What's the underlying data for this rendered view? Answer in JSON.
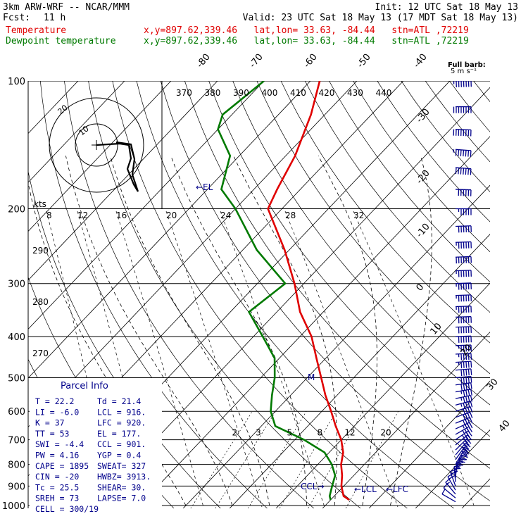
{
  "header": {
    "model": "3km ARW-WRF -- NCAR/MMM",
    "init": "Init: 12 UTC Sat 18 May 13",
    "fcst_label": "Fcst:",
    "fcst_value": "11 h",
    "valid": "Valid: 23 UTC Sat 18 May 13 (17 MDT Sat 18 May 13)"
  },
  "legend": [
    {
      "name": "Temperature",
      "color": "#e00000",
      "info": "x,y=897.62,339.46   lat,lon= 33.63, -84.44   stn=ATL ,72219"
    },
    {
      "name": "Dewpoint temperature",
      "color": "#007a00",
      "info": "x,y=897.62,339.46   lat,lon= 33.63, -84.44   stn=ATL ,72219"
    }
  ],
  "chart_data": {
    "type": "line",
    "chart": "skew-T log-p sounding",
    "pressure_levels": [
      "100",
      "200",
      "300",
      "400",
      "500",
      "600",
      "700",
      "800",
      "900",
      "1000"
    ],
    "temperature_labels": [
      "-80",
      "-70",
      "-60",
      "-50",
      "-40",
      "-30",
      "-20",
      "-10",
      "0",
      "10",
      "20",
      "30",
      "40"
    ],
    "theta_labels": [
      "370",
      "380",
      "390",
      "400",
      "410",
      "420",
      "430",
      "440"
    ],
    "theta_left_labels": [
      "290",
      "280",
      "270"
    ],
    "mixing_ratio_labels": [
      "2",
      "3",
      "5",
      "8",
      "12",
      "20"
    ],
    "wind_speed_labels": [
      "8",
      "12",
      "16",
      "20",
      "24",
      "28",
      "32"
    ],
    "kts_label": "kts",
    "hodo_ring_labels": [
      "20",
      "10"
    ],
    "full_barb_label": "Full barb:",
    "full_barb_value": "5 m s⁻¹",
    "annotations": {
      "el": "←EL",
      "ccl": "CCL→",
      "lcl": "←LCL",
      "lfc": "←LFC",
      "marker": "M"
    },
    "series": [
      {
        "name": "Temperature",
        "color": "#e00000",
        "points": [
          [
            970,
            24
          ],
          [
            950,
            22
          ],
          [
            900,
            19.5
          ],
          [
            850,
            17.5
          ],
          [
            800,
            15
          ],
          [
            750,
            13
          ],
          [
            700,
            10
          ],
          [
            650,
            6
          ],
          [
            600,
            2
          ],
          [
            550,
            -2.5
          ],
          [
            500,
            -7
          ],
          [
            450,
            -12
          ],
          [
            400,
            -17.5
          ],
          [
            350,
            -25
          ],
          [
            300,
            -32
          ],
          [
            250,
            -41
          ],
          [
            200,
            -53
          ],
          [
            180,
            -55
          ],
          [
            150,
            -58
          ],
          [
            120,
            -63
          ],
          [
            100,
            -68
          ]
        ]
      },
      {
        "name": "Dewpoint temperature",
        "color": "#007a00",
        "points": [
          [
            970,
            20
          ],
          [
            950,
            19
          ],
          [
            900,
            17.5
          ],
          [
            850,
            16
          ],
          [
            800,
            13
          ],
          [
            750,
            9
          ],
          [
            700,
            2
          ],
          [
            650,
            -7
          ],
          [
            600,
            -11
          ],
          [
            550,
            -14
          ],
          [
            500,
            -17
          ],
          [
            450,
            -21
          ],
          [
            400,
            -28
          ],
          [
            350,
            -36
          ],
          [
            300,
            -34
          ],
          [
            250,
            -47
          ],
          [
            200,
            -60
          ],
          [
            180,
            -67
          ],
          [
            150,
            -72
          ],
          [
            130,
            -80
          ],
          [
            120,
            -82
          ],
          [
            100,
            -80
          ]
        ]
      }
    ],
    "wind_barbs": [
      {
        "p": 980,
        "dir": 120,
        "spd": 1.5
      },
      {
        "p": 960,
        "dir": 130,
        "spd": 2
      },
      {
        "p": 940,
        "dir": 140,
        "spd": 3
      },
      {
        "p": 920,
        "dir": 150,
        "spd": 3.5
      },
      {
        "p": 900,
        "dir": 160,
        "spd": 4
      },
      {
        "p": 880,
        "dir": 175,
        "spd": 4.5
      },
      {
        "p": 860,
        "dir": 185,
        "spd": 4.5
      },
      {
        "p": 840,
        "dir": 195,
        "spd": 5
      },
      {
        "p": 820,
        "dir": 205,
        "spd": 5
      },
      {
        "p": 800,
        "dir": 210,
        "spd": 5
      },
      {
        "p": 780,
        "dir": 215,
        "spd": 5.5
      },
      {
        "p": 760,
        "dir": 220,
        "spd": 6
      },
      {
        "p": 740,
        "dir": 225,
        "spd": 6
      },
      {
        "p": 720,
        "dir": 230,
        "spd": 6
      },
      {
        "p": 700,
        "dir": 235,
        "spd": 6.5
      },
      {
        "p": 680,
        "dir": 240,
        "spd": 7
      },
      {
        "p": 660,
        "dir": 245,
        "spd": 7
      },
      {
        "p": 640,
        "dir": 248,
        "spd": 7.5
      },
      {
        "p": 620,
        "dir": 250,
        "spd": 8
      },
      {
        "p": 600,
        "dir": 252,
        "spd": 8
      },
      {
        "p": 580,
        "dir": 255,
        "spd": 8.5
      },
      {
        "p": 560,
        "dir": 258,
        "spd": 9
      },
      {
        "p": 540,
        "dir": 260,
        "spd": 9
      },
      {
        "p": 520,
        "dir": 262,
        "spd": 9.5
      },
      {
        "p": 500,
        "dir": 265,
        "spd": 10
      },
      {
        "p": 480,
        "dir": 265,
        "spd": 10
      },
      {
        "p": 460,
        "dir": 266,
        "spd": 10.5
      },
      {
        "p": 440,
        "dir": 267,
        "spd": 11
      },
      {
        "p": 420,
        "dir": 268,
        "spd": 11
      },
      {
        "p": 400,
        "dir": 268,
        "spd": 11.5
      },
      {
        "p": 380,
        "dir": 268,
        "spd": 12
      },
      {
        "p": 360,
        "dir": 268,
        "spd": 12
      },
      {
        "p": 340,
        "dir": 268,
        "spd": 12.5
      },
      {
        "p": 320,
        "dir": 268,
        "spd": 13
      },
      {
        "p": 300,
        "dir": 268,
        "spd": 13
      },
      {
        "p": 280,
        "dir": 268,
        "spd": 13
      },
      {
        "p": 260,
        "dir": 268,
        "spd": 13.5
      },
      {
        "p": 240,
        "dir": 268,
        "spd": 13
      },
      {
        "p": 220,
        "dir": 268,
        "spd": 12
      },
      {
        "p": 200,
        "dir": 270,
        "spd": 11
      },
      {
        "p": 180,
        "dir": 272,
        "spd": 12
      },
      {
        "p": 160,
        "dir": 274,
        "spd": 14
      },
      {
        "p": 145,
        "dir": 274,
        "spd": 15
      },
      {
        "p": 130,
        "dir": 272,
        "spd": 16
      },
      {
        "p": 115,
        "dir": 270,
        "spd": 16
      },
      {
        "p": 100,
        "dir": 268,
        "spd": 15
      }
    ]
  },
  "parcel_info": {
    "title": "Parcel Info",
    "rows": [
      [
        "T  =    22.2",
        "Td =  21.4"
      ],
      [
        "LI =    -6.0",
        "LCL =  916."
      ],
      [
        "K  =      37",
        "LFC = 920."
      ],
      [
        "TT =      53",
        "EL  =  177."
      ],
      [
        "SWI =  -4.4",
        "CCL = 901."
      ],
      [
        "PW =   4.16",
        "YGP =   0.4"
      ],
      [
        "CAPE = 1895",
        "SWEAT=  327"
      ],
      [
        "CIN =   -20",
        "HWBZ= 3913."
      ],
      [
        "Tc =   25.5",
        "SHEAR=  30."
      ],
      [
        "SREH =   73",
        "LAPSE=  7.0"
      ],
      [
        "CELL = 300/19",
        ""
      ]
    ]
  }
}
